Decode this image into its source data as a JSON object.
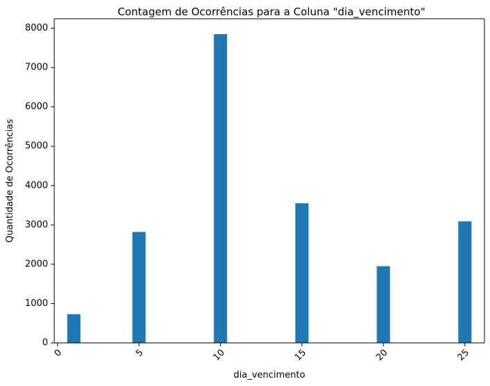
{
  "chart_data": {
    "type": "bar",
    "title": "Contagem de Ocorrências para a Coluna \"dia_vencimento\"",
    "xlabel": "dia_vencimento",
    "ylabel": "Quantidade de Ocorrências",
    "x": [
      1,
      5,
      10,
      15,
      20,
      25
    ],
    "values": [
      730,
      2820,
      7850,
      3550,
      1950,
      3090
    ],
    "xlim": [
      -0.2,
      26.2
    ],
    "ylim": [
      0,
      8240
    ],
    "xticks": [
      "0",
      "5",
      "10",
      "15",
      "20",
      "25"
    ],
    "yticks": [
      "0",
      "1000",
      "2000",
      "3000",
      "4000",
      "5000",
      "6000",
      "7000",
      "8000"
    ],
    "xtick_rotation": -45,
    "grid": false,
    "legend": "none",
    "bar_color": "#1f77b4"
  }
}
